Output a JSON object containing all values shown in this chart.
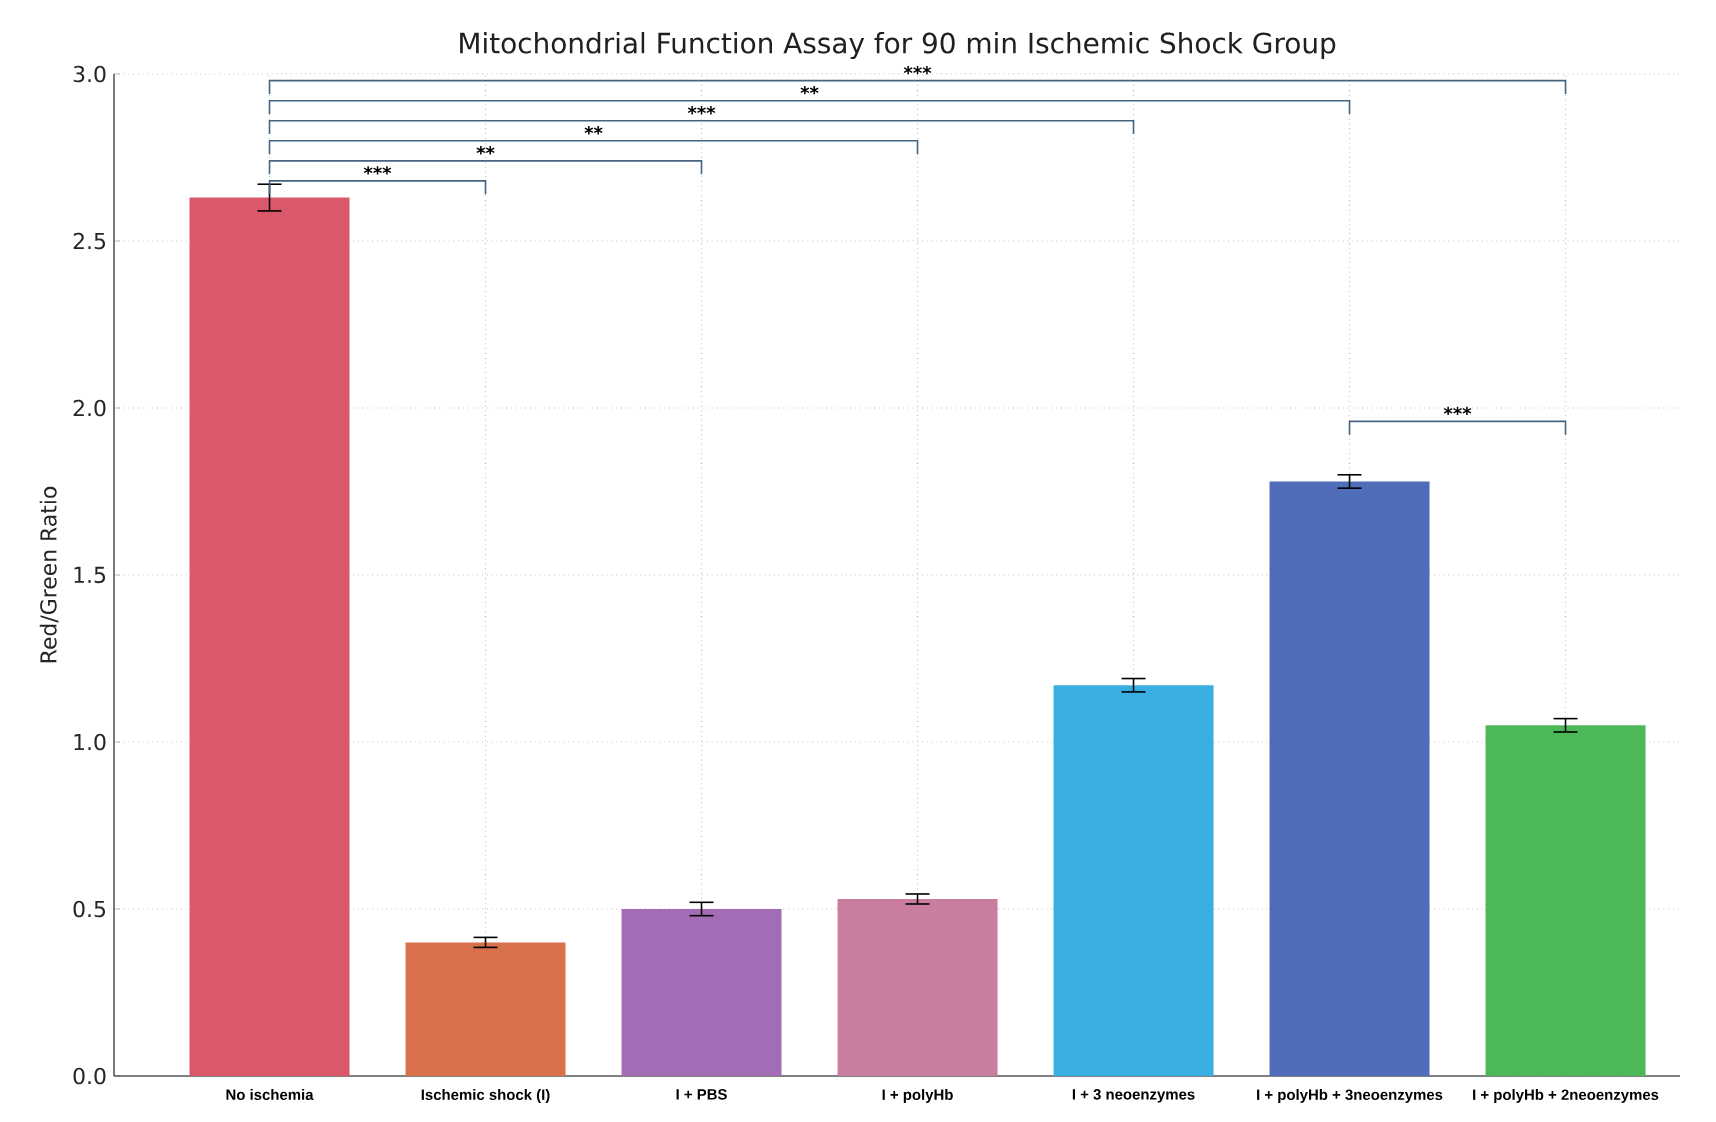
{
  "chart_data": {
    "type": "bar",
    "title": "Mitochondrial Function Assay for 90 min Ischemic Shock Group",
    "ylabel": "Red/Green Ratio",
    "categories": [
      "No ischemia",
      "Ischemic shock (I)",
      "I + PBS",
      "I + polyHb",
      "I + 3 neoenzymes",
      "I + polyHb + 3neoenzymes",
      "I + polyHb + 2neoenzymes"
    ],
    "values": [
      2.63,
      0.4,
      0.5,
      0.53,
      1.17,
      1.78,
      1.05
    ],
    "errors": [
      0.04,
      0.015,
      0.02,
      0.015,
      0.02,
      0.02,
      0.02
    ],
    "colors": [
      "#d9596b",
      "#d8714a",
      "#a36db5",
      "#c97ea0",
      "#3aaee0",
      "#4f6db8",
      "#4cb85a"
    ],
    "ylim": [
      0,
      3
    ],
    "yticks": [
      {
        "value": 0,
        "label": "0.0"
      },
      0.5,
      {
        "value": 1,
        "label": "1.0"
      },
      1.5,
      {
        "value": 2,
        "label": "2.0"
      },
      2.5,
      {
        "value": 3,
        "label": "3.0"
      }
    ],
    "grid": true,
    "annotations": [
      "***",
      "**",
      "**",
      "***",
      "**",
      "***",
      "***"
    ]
  }
}
